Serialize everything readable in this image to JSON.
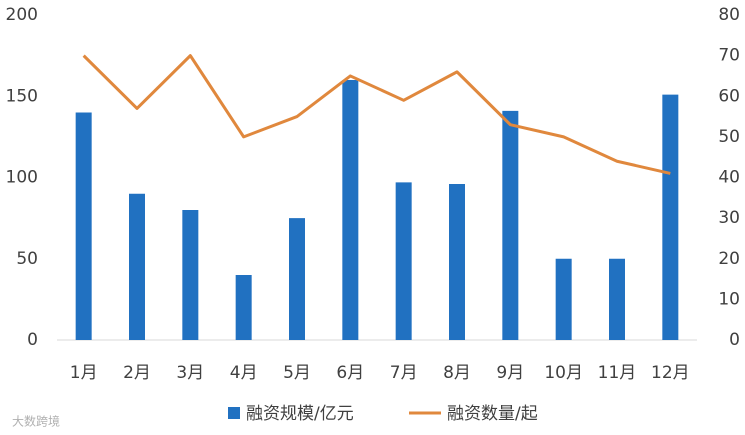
{
  "chart_data": {
    "type": "bar",
    "categories": [
      "1月",
      "2月",
      "3月",
      "4月",
      "5月",
      "6月",
      "7月",
      "8月",
      "9月",
      "10月",
      "11月",
      "12月"
    ],
    "series": [
      {
        "name": "融资规模/亿元",
        "type": "bar",
        "color": "#2171c1",
        "values": [
          140,
          90,
          80,
          40,
          75,
          160,
          97,
          96,
          141,
          50,
          50,
          151
        ]
      },
      {
        "name": "融资数量/起",
        "type": "line",
        "axis": "y2",
        "color": "#e0883d",
        "values": [
          70,
          57,
          70,
          50,
          55,
          65,
          59,
          66,
          53,
          50,
          44,
          41
        ]
      }
    ],
    "ylim": [
      0,
      200
    ],
    "yticks": [
      0,
      50,
      100,
      150,
      200
    ],
    "y2lim": [
      0,
      80
    ],
    "y2ticks": [
      0,
      10,
      20,
      30,
      40,
      50,
      60,
      70,
      80
    ],
    "grid": false,
    "legend": "bottom",
    "watermark": "大数跨境"
  }
}
